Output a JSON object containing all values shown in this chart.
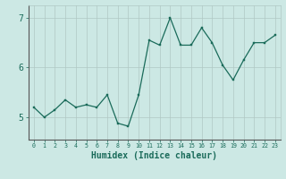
{
  "x": [
    0,
    1,
    2,
    3,
    4,
    5,
    6,
    7,
    8,
    9,
    10,
    11,
    12,
    13,
    14,
    15,
    16,
    17,
    18,
    19,
    20,
    21,
    22,
    23
  ],
  "y": [
    5.2,
    5.0,
    5.15,
    5.35,
    5.2,
    5.25,
    5.2,
    5.45,
    4.88,
    4.82,
    5.45,
    6.55,
    6.45,
    7.0,
    6.45,
    6.45,
    6.8,
    6.5,
    6.05,
    5.75,
    6.15,
    6.5,
    6.5,
    6.65
  ],
  "line_color": "#1a6b5a",
  "marker_color": "#1a6b5a",
  "bg_color": "#cce8e4",
  "grid_color": "#b0c8c4",
  "axis_color": "#555555",
  "xlabel": "Humidex (Indice chaleur)",
  "xlim": [
    -0.5,
    23.5
  ],
  "ylim": [
    4.55,
    7.25
  ],
  "yticks": [
    5,
    6,
    7
  ],
  "xtick_labels": [
    "0",
    "1",
    "2",
    "3",
    "4",
    "5",
    "6",
    "7",
    "8",
    "9",
    "10",
    "11",
    "12",
    "13",
    "14",
    "15",
    "16",
    "17",
    "18",
    "19",
    "20",
    "21",
    "22",
    "23"
  ]
}
